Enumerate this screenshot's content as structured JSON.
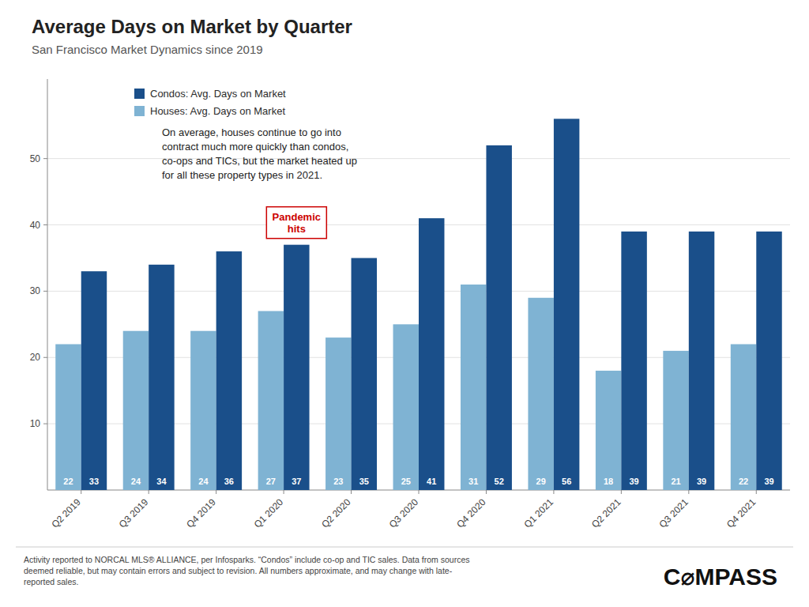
{
  "chart_data": {
    "type": "bar",
    "title": "Average Days on Market by Quarter",
    "subtitle": "San Francisco Market Dynamics since 2019",
    "categories": [
      "Q2 2019",
      "Q3 2019",
      "Q4 2019",
      "Q1 2020",
      "Q2 2020",
      "Q3 2020",
      "Q4 2020",
      "Q1 2021",
      "Q2 2021",
      "Q3 2021",
      "Q4 2021"
    ],
    "series": [
      {
        "name": "Houses: Avg. Days on Market",
        "color": "#7fb3d3",
        "values": [
          22,
          24,
          24,
          27,
          23,
          25,
          31,
          29,
          18,
          21,
          22
        ]
      },
      {
        "name": "Condos: Avg. Days on Market",
        "color": "#1a4f8a",
        "values": [
          33,
          34,
          36,
          37,
          35,
          41,
          52,
          56,
          39,
          39,
          39
        ]
      }
    ],
    "ylim": [
      0,
      62
    ],
    "yticks": [
      10,
      20,
      30,
      40,
      50
    ],
    "grid": true,
    "legend": "upper left",
    "data_labels": true,
    "annotations": [
      "On average, houses continue to go into\ncontract much more quickly than condos,\nco-ops and TICs, but the market heated up\nfor all these property types in 2021.",
      {
        "text": "Pandemic\nhits",
        "x": "Q1 2020",
        "color": "#cc0000"
      },
      "Activity reported to NORCAL MLS® ALLIANCE, per Infosparks. “Condos” include co-op and TIC sales. Data from sources\ndeemed reliable, but may contain errors and subject to revision. All numbers approximate, and may change with late-\nreported sales.",
      "C⌀MPASS"
    ]
  }
}
